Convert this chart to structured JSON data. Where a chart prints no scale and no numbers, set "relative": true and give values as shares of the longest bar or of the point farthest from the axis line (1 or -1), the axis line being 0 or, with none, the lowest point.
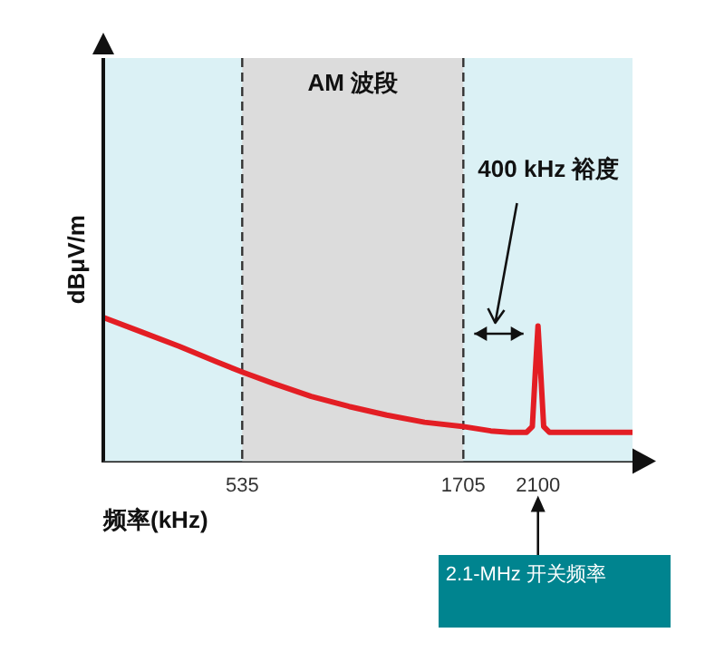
{
  "chart_data": {
    "type": "line",
    "relative": true,
    "xlabel": "频率(kHz)",
    "ylabel": "dBμV/m",
    "x": [
      -200,
      0,
      200,
      400,
      535,
      700,
      900,
      1100,
      1300,
      1500,
      1705,
      1850,
      1950,
      2040,
      2070,
      2085,
      2100,
      2115,
      2130,
      2160,
      2250,
      2600
    ],
    "series": [
      {
        "color": "#e31e24",
        "values": [
          1,
          0.9,
          0.8,
          0.69,
          0.62,
          0.54,
          0.45,
          0.38,
          0.32,
          0.27,
          0.24,
          0.21,
          0.2,
          0.2,
          0.24,
          0.6,
          0.94,
          0.6,
          0.24,
          0.2,
          0.2,
          0.2
        ]
      }
    ],
    "xlim": [
      -200,
      2600
    ],
    "xticks": [
      535,
      1705,
      2100
    ],
    "bands": [
      {
        "axis": "x",
        "from": 535,
        "to": 1705,
        "label": "AM 波段",
        "color": "#dcdcdc"
      }
    ],
    "ref_lines": [
      {
        "axis": "x",
        "value": 535,
        "color": "#333333",
        "line_style": "dashed"
      },
      {
        "axis": "x",
        "value": 1705,
        "color": "#333333",
        "line_style": "dashed"
      }
    ],
    "annotations": [
      "400 kHz 裕度",
      "2.1-MHz 开关频率"
    ],
    "grid": false,
    "legend": false,
    "marker": "none",
    "line_style": "solid"
  }
}
